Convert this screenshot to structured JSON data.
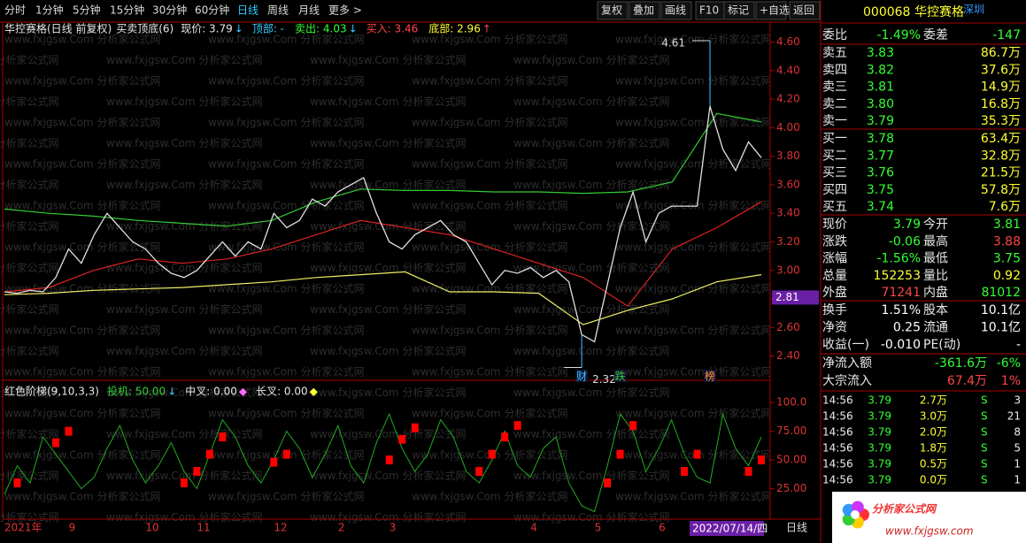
{
  "toolbar": {
    "periods": [
      "分时",
      "1分钟",
      "5分钟",
      "15分钟",
      "30分钟",
      "60分钟",
      "日线",
      "周线",
      "月线",
      "更多 >"
    ],
    "active_period": 6,
    "tools": [
      "复权",
      "叠加",
      "画线",
      "F10",
      "标记",
      "+自选",
      "返回"
    ]
  },
  "watermark": "www.fxjgsw.Com 分析家公式网",
  "main_chart": {
    "type": "line",
    "title": "华控赛格(日线 前复权)",
    "indicator": "买卖顶底(6)",
    "fields": [
      {
        "text": "现价: 3.79",
        "arrow": "↓",
        "color": "#e8e8e8",
        "arrow_color": "#3cf"
      },
      {
        "text": "顶部: -",
        "arrow": "",
        "color": "#3cf",
        "arrow_color": "#3cf"
      },
      {
        "text": "卖出: 4.03",
        "arrow": "↓",
        "color": "#3f3",
        "arrow_color": "#3cf"
      },
      {
        "text": "买入: 3.46",
        "arrow": "",
        "color": "#f44",
        "arrow_color": "#f44"
      },
      {
        "text": "底部: 2.96",
        "arrow": "↑",
        "color": "#ff3",
        "arrow_color": "#f44"
      }
    ],
    "ylim": [
      2.23,
      4.74
    ],
    "yticks": [
      {
        "value": 4.6,
        "label": "4.60"
      },
      {
        "value": 4.4,
        "label": "4.40"
      },
      {
        "value": 4.2,
        "label": "4.20"
      },
      {
        "value": 4.0,
        "label": "4.00"
      },
      {
        "value": 3.8,
        "label": "3.80"
      },
      {
        "value": 3.6,
        "label": "3.60"
      },
      {
        "value": 3.4,
        "label": "3.40"
      },
      {
        "value": 3.2,
        "label": "3.20"
      },
      {
        "value": 3.0,
        "label": "3.00"
      },
      {
        "value": 2.8,
        "label": "2.80"
      },
      {
        "value": 2.6,
        "label": "2.60"
      },
      {
        "value": 2.4,
        "label": "2.40"
      }
    ],
    "close": {
      "color": "#e0e0e0",
      "values": [
        2.85,
        2.84,
        2.86,
        2.85,
        2.95,
        3.15,
        3.05,
        3.25,
        3.4,
        3.3,
        3.2,
        3.15,
        3.05,
        2.98,
        2.95,
        3.0,
        3.1,
        3.2,
        3.1,
        3.2,
        3.15,
        3.4,
        3.3,
        3.35,
        3.5,
        3.45,
        3.55,
        3.6,
        3.65,
        3.4,
        3.2,
        3.15,
        3.25,
        3.3,
        3.35,
        3.25,
        3.2,
        3.05,
        2.9,
        3.0,
        2.98,
        3.02,
        2.95,
        3.0,
        2.92,
        2.55,
        2.5,
        2.9,
        3.3,
        3.55,
        3.2,
        3.4,
        3.45,
        3.45,
        3.45,
        4.15,
        3.85,
        3.7,
        3.9,
        3.79
      ]
    },
    "averages": [
      {
        "color": "#3c3",
        "values": [
          3.43,
          3.4,
          3.38,
          3.35,
          3.33,
          3.31,
          3.35,
          3.48,
          3.57,
          3.56,
          3.56,
          3.55,
          3.55,
          3.54,
          3.55,
          3.62,
          4.1,
          4.04
        ]
      },
      {
        "color": "#d22",
        "values": [
          2.85,
          2.88,
          3.0,
          3.08,
          3.05,
          3.08,
          3.15,
          3.25,
          3.35,
          3.3,
          3.25,
          3.15,
          3.05,
          2.95,
          2.75,
          3.15,
          3.3,
          3.48
        ]
      },
      {
        "color": "#ee6",
        "values": [
          2.83,
          2.84,
          2.86,
          2.87,
          2.88,
          2.9,
          2.92,
          2.95,
          2.97,
          2.99,
          2.85,
          2.85,
          2.84,
          2.62,
          2.72,
          2.8,
          2.92,
          2.97
        ]
      }
    ],
    "high_mark": {
      "value": 4.61,
      "label": "4.61",
      "index": 55
    },
    "low_mark": {
      "value": 2.32,
      "label": "2.32",
      "index": 45
    },
    "price_tag": 2.81,
    "events": [
      {
        "label": "财",
        "index": 45
      },
      {
        "label": "跌",
        "index": 48
      },
      {
        "label": "榜",
        "index": 55
      }
    ]
  },
  "indicator_chart": {
    "type": "line",
    "title": "红色阶梯(9,10,3,3)",
    "fields": [
      {
        "text": "投机: 50.00",
        "arrow": "↓",
        "color": "#3c3",
        "arrow_color": "#3cf"
      },
      {
        "text": "中叉: 0.00",
        "arrow": "◆",
        "color": "#e8e8e8",
        "arrow_color": "#f6f"
      },
      {
        "text": "长叉: 0.00",
        "arrow": "◆",
        "color": "#e8e8e8",
        "arrow_color": "#ff3"
      }
    ],
    "ylim": [
      0,
      104
    ],
    "yticks": [
      {
        "value": 100,
        "label": "100.0"
      },
      {
        "value": 75,
        "label": "75.00"
      },
      {
        "value": 50,
        "label": "50.00"
      },
      {
        "value": 25,
        "label": "25.00"
      }
    ],
    "line": {
      "color": "#2a2",
      "values": [
        20,
        45,
        30,
        70,
        55,
        40,
        25,
        35,
        60,
        80,
        50,
        30,
        45,
        65,
        40,
        25,
        55,
        85,
        70,
        45,
        30,
        50,
        75,
        60,
        35,
        55,
        80,
        45,
        30,
        65,
        90,
        60,
        40,
        55,
        85,
        70,
        40,
        30,
        50,
        75,
        45,
        35,
        60,
        70,
        30,
        10,
        5,
        45,
        90,
        75,
        40,
        60,
        85,
        55,
        35,
        30,
        90,
        60,
        45,
        70
      ]
    },
    "ladder": {
      "color": "#f00",
      "values": [
        null,
        30,
        null,
        null,
        65,
        75,
        null,
        null,
        null,
        null,
        null,
        null,
        null,
        null,
        30,
        40,
        55,
        70,
        null,
        null,
        null,
        48,
        55,
        null,
        null,
        null,
        null,
        null,
        null,
        null,
        50,
        68,
        78,
        null,
        null,
        null,
        null,
        40,
        55,
        70,
        80,
        null,
        null,
        null,
        null,
        null,
        null,
        30,
        55,
        80,
        null,
        null,
        null,
        40,
        55,
        null,
        null,
        null,
        40,
        50
      ]
    }
  },
  "x_labels": [
    {
      "label": "2021年",
      "index": 0
    },
    {
      "label": "9",
      "index": 5
    },
    {
      "label": "10",
      "index": 11
    },
    {
      "label": "11",
      "index": 15
    },
    {
      "label": "12",
      "index": 21
    },
    {
      "label": "2",
      "index": 26
    },
    {
      "label": "3",
      "index": 30
    },
    {
      "label": "4",
      "index": 41
    },
    {
      "label": "5",
      "index": 46
    },
    {
      "label": "6",
      "index": 51
    }
  ],
  "cursor_date": "2022/07/14/四",
  "period_label": "日线",
  "quote": {
    "code": "000068",
    "name": "华控赛格",
    "market": "深圳",
    "ratio": {
      "cells": [
        "委比",
        "-1.49%",
        "委差",
        "-147"
      ],
      "colors": [
        "#3f3",
        "#3f3"
      ]
    },
    "sells": [
      [
        "卖五",
        "3.83",
        "86.7万"
      ],
      [
        "卖四",
        "3.82",
        "37.6万"
      ],
      [
        "卖三",
        "3.81",
        "14.9万"
      ],
      [
        "卖二",
        "3.80",
        "16.8万"
      ],
      [
        "卖一",
        "3.79",
        "35.3万"
      ]
    ],
    "buys": [
      [
        "买一",
        "3.78",
        "63.4万"
      ],
      [
        "买二",
        "3.77",
        "32.8万"
      ],
      [
        "买三",
        "3.76",
        "21.5万"
      ],
      [
        "买四",
        "3.75",
        "57.8万"
      ],
      [
        "买五",
        "3.74",
        "7.6万"
      ]
    ],
    "stats": [
      {
        "cells": [
          "现价",
          "3.79",
          "今开",
          "3.81"
        ],
        "colors": [
          "#3f3",
          "#3f3"
        ]
      },
      {
        "cells": [
          "涨跌",
          "-0.06",
          "最高",
          "3.88"
        ],
        "colors": [
          "#3f3",
          "#f44"
        ]
      },
      {
        "cells": [
          "涨幅",
          "-1.56%",
          "最低",
          "3.75"
        ],
        "colors": [
          "#3f3",
          "#3f3"
        ]
      },
      {
        "cells": [
          "总量",
          "152253",
          "量比",
          "0.92"
        ],
        "colors": [
          "#ff3",
          "#ff3"
        ]
      },
      {
        "cells": [
          "外盘",
          "71241",
          "内盘",
          "81012"
        ],
        "colors": [
          "#f44",
          "#3f3"
        ]
      }
    ],
    "fundamentals": [
      {
        "cells": [
          "换手",
          "1.51%",
          "股本",
          "10.1亿"
        ],
        "colors": [
          "#fff",
          "#fff"
        ]
      },
      {
        "cells": [
          "净资",
          "0.25",
          "流通",
          "10.1亿"
        ],
        "colors": [
          "#fff",
          "#fff"
        ]
      },
      {
        "cells": [
          "收益(一)",
          "-0.010",
          "PE(动)",
          "-"
        ],
        "colors": [
          "#fff",
          "#fff"
        ]
      }
    ],
    "flows": [
      {
        "cells": [
          "净流入额",
          "-361.6万",
          "-6%"
        ],
        "color": "#3f3"
      },
      {
        "cells": [
          "大宗流入",
          "67.4万",
          "1%"
        ],
        "color": "#f44"
      }
    ],
    "trades": [
      [
        "14:56",
        "3.79",
        "2.7万",
        "S",
        "3"
      ],
      [
        "14:56",
        "3.79",
        "3.0万",
        "S",
        "21"
      ],
      [
        "14:56",
        "3.79",
        "2.0万",
        "S",
        "8"
      ],
      [
        "14:56",
        "3.79",
        "1.8万",
        "S",
        "5"
      ],
      [
        "14:56",
        "3.79",
        "0.5万",
        "S",
        "1"
      ],
      [
        "14:56",
        "3.79",
        "0.0万",
        "S",
        "1"
      ]
    ]
  },
  "logo": {
    "title": "分析家公式网",
    "url": "www.fxjgsw.com"
  }
}
